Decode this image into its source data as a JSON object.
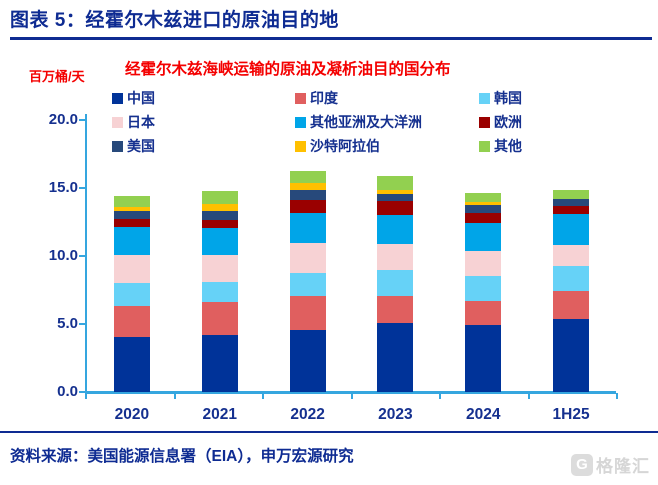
{
  "header": {
    "title": "图表 5：经霍尔木兹进口的原油目的地"
  },
  "chart": {
    "title": "经霍尔木兹海峡运输的原油及凝析油目的国分布",
    "y_unit": "百万桶/天",
    "y_ticks": [
      "20.0",
      "15.0",
      "10.0",
      "5.0",
      "0.0"
    ],
    "x_labels": [
      "2020",
      "2021",
      "2022",
      "2023",
      "2024",
      "1H25"
    ]
  },
  "chart_data": {
    "type": "bar",
    "stacked": true,
    "title": "经霍尔木兹海峡运输的原油及凝析油目的国分布",
    "xlabel": "",
    "ylabel": "百万桶/天",
    "ylim": [
      0,
      20
    ],
    "grid": false,
    "legend_position": "top",
    "categories": [
      "2020",
      "2021",
      "2022",
      "2023",
      "2024",
      "1H25"
    ],
    "series": [
      {
        "name": "中国",
        "color": "#003399",
        "values": [
          4.05,
          4.2,
          4.55,
          5.1,
          4.9,
          5.35
        ]
      },
      {
        "name": "印度",
        "color": "#E05F5F",
        "values": [
          2.25,
          2.4,
          2.5,
          1.95,
          1.8,
          2.05
        ]
      },
      {
        "name": "韩国",
        "color": "#66D2F7",
        "values": [
          1.75,
          1.5,
          1.7,
          1.95,
          1.85,
          1.85
        ]
      },
      {
        "name": "日本",
        "color": "#F7D2D4",
        "values": [
          2.05,
          1.95,
          2.2,
          1.9,
          1.8,
          1.55
        ]
      },
      {
        "name": "其他亚洲及大洋洲",
        "color": "#00A5E8",
        "values": [
          2.0,
          2.0,
          2.2,
          2.15,
          2.05,
          2.3
        ]
      },
      {
        "name": "欧洲",
        "color": "#9A0000",
        "values": [
          0.6,
          0.6,
          0.95,
          1.0,
          0.75,
          0.55
        ]
      },
      {
        "name": "美国",
        "color": "#27497B",
        "values": [
          0.6,
          0.65,
          0.75,
          0.5,
          0.6,
          0.55
        ]
      },
      {
        "name": "沙特阿拉伯",
        "color": "#FFC000",
        "values": [
          0.3,
          0.5,
          0.55,
          0.3,
          0.25,
          0.0
        ]
      },
      {
        "name": "其他",
        "color": "#92D050",
        "values": [
          0.8,
          1.0,
          0.85,
          1.05,
          0.65,
          0.65
        ]
      }
    ]
  },
  "footer": {
    "source": "资料来源：美国能源信息署（EIA），申万宏源研究",
    "logo_letter": "G",
    "logo_text": "格隆汇"
  },
  "colors": {
    "navy_text": "#15308F",
    "title_navy": "#0E2B92",
    "red_text": "#F40000",
    "axis_blue": "#35A6DF",
    "logo_grey": "#D6D6D6"
  }
}
